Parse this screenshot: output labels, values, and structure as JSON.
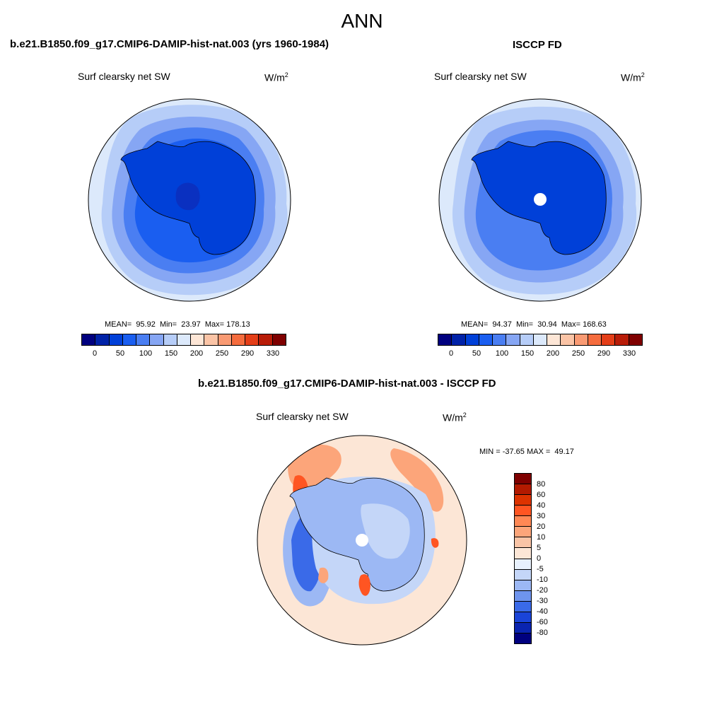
{
  "season": "ANN",
  "panels": [
    {
      "title": "b.e21.B1850.f09_g17.CMIP6-DAMIP-hist-nat.003 (yrs 1960-1984)",
      "variable": "Surf clearsky net SW",
      "units_base": "W/m",
      "units_sup": "2",
      "stats": "MEAN=  95.92  Min=  23.97  Max= 178.13",
      "colorbar_ticks": [
        "0",
        "50",
        "100",
        "150",
        "200",
        "250",
        "290",
        "330"
      ]
    },
    {
      "title": "ISCCP FD",
      "variable": "Surf clearsky net SW",
      "units_base": "W/m",
      "units_sup": "2",
      "stats": "MEAN=  94.37  Min=  30.94  Max= 168.63",
      "colorbar_ticks": [
        "0",
        "50",
        "100",
        "150",
        "200",
        "250",
        "290",
        "330"
      ]
    },
    {
      "title": "b.e21.B1850.f09_g17.CMIP6-DAMIP-hist-nat.003 - ISCCP FD",
      "variable": "Surf clearsky net SW",
      "units_base": "W/m",
      "units_sup": "2",
      "stats": "MIN = -37.65 MAX =  49.17",
      "colorbar_ticks": [
        "80",
        "60",
        "40",
        "30",
        "20",
        "10",
        "5",
        "0",
        "-5",
        "-10",
        "-20",
        "-30",
        "-40",
        "-60",
        "-80"
      ]
    }
  ],
  "colors": {
    "abs_scale": [
      "#00007f",
      "#0022a8",
      "#0040d8",
      "#1a5ef0",
      "#4a7ef2",
      "#86a6f4",
      "#b6cdf8",
      "#dce9fb",
      "#fde6d6",
      "#fbc4a6",
      "#f99a73",
      "#f56c3e",
      "#e43e18",
      "#b81c08",
      "#7f0000"
    ],
    "diff_scale": [
      "#7f0000",
      "#b31a00",
      "#dd3300",
      "#ff5522",
      "#ff8855",
      "#fca57a",
      "#f9c4a6",
      "#fce6d6",
      "#e8f1fd",
      "#c4d6f8",
      "#9cb8f4",
      "#6e94ee",
      "#3a6ae8",
      "#1a44d8",
      "#0a24b0",
      "#00007f"
    ]
  }
}
